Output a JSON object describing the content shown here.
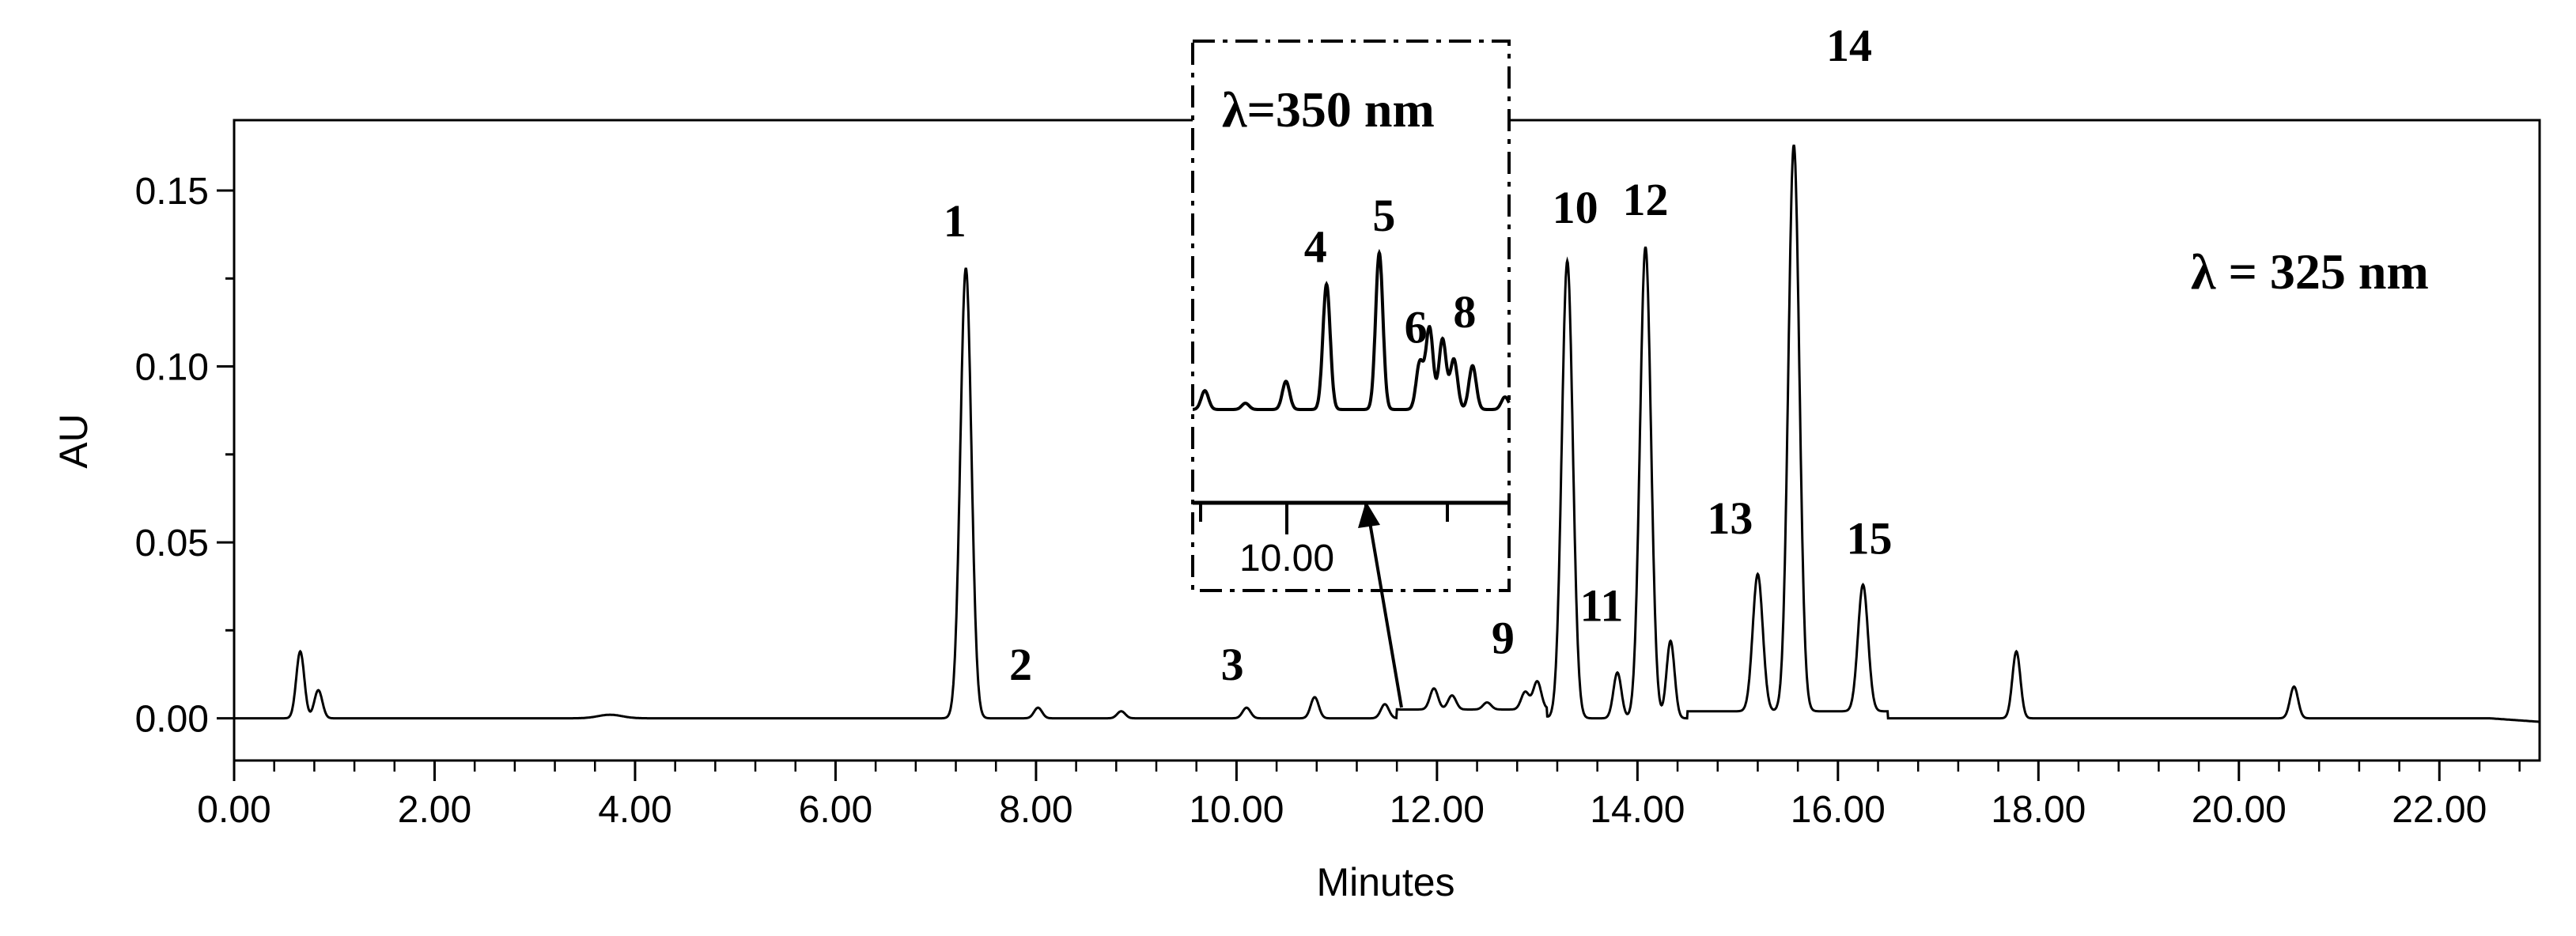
{
  "chart_data": {
    "type": "line",
    "xlabel": "Minutes",
    "ylabel": "AU",
    "xlim": [
      0,
      23
    ],
    "ylim": [
      -0.012,
      0.17
    ],
    "x_ticks": [
      "0.00",
      "2.00",
      "4.00",
      "6.00",
      "8.00",
      "10.00",
      "12.00",
      "14.00",
      "16.00",
      "18.00",
      "20.00",
      "22.00"
    ],
    "y_ticks": [
      "0.00",
      "0.05",
      "0.10",
      "0.15"
    ],
    "annotation": "λ = 325 nm",
    "series": [
      {
        "peaks": [
          {
            "x": 0.66,
            "y": 0.019
          },
          {
            "x": 0.84,
            "y": 0.008
          },
          {
            "x": 3.75,
            "y": 0.001
          },
          {
            "x": 7.3,
            "y": 0.128
          },
          {
            "x": 8.02,
            "y": 0.003
          },
          {
            "x": 8.85,
            "y": 0.002
          },
          {
            "x": 10.1,
            "y": 0.003
          },
          {
            "x": 10.78,
            "y": 0.006
          },
          {
            "x": 11.48,
            "y": 0.004
          },
          {
            "x": 11.97,
            "y": 0.006
          },
          {
            "x": 12.15,
            "y": 0.004
          },
          {
            "x": 12.5,
            "y": 0.002
          },
          {
            "x": 12.88,
            "y": 0.005
          },
          {
            "x": 13.0,
            "y": 0.008
          },
          {
            "x": 13.3,
            "y": 0.13
          },
          {
            "x": 13.8,
            "y": 0.013
          },
          {
            "x": 14.08,
            "y": 0.134
          },
          {
            "x": 14.33,
            "y": 0.022
          },
          {
            "x": 15.2,
            "y": 0.039
          },
          {
            "x": 15.56,
            "y": 0.161
          },
          {
            "x": 16.25,
            "y": 0.036
          },
          {
            "x": 17.78,
            "y": 0.019
          },
          {
            "x": 20.55,
            "y": 0.009
          }
        ]
      }
    ],
    "peak_labels": [
      {
        "text": "1",
        "x": 7.3,
        "y": 0.128
      },
      {
        "text": "2",
        "x": 8.02,
        "y": 0.003
      },
      {
        "text": "3",
        "x": 10.1,
        "y": 0.003
      },
      {
        "text": "9",
        "x": 12.88,
        "y": 0.005
      },
      {
        "text": "10",
        "x": 13.3,
        "y": 0.13
      },
      {
        "text": "11",
        "x": 13.8,
        "y": 0.013
      },
      {
        "text": "12",
        "x": 14.08,
        "y": 0.134
      },
      {
        "text": "13",
        "x": 15.2,
        "y": 0.039
      },
      {
        "text": "14",
        "x": 15.56,
        "y": 0.161
      },
      {
        "text": "15",
        "x": 16.25,
        "y": 0.036
      }
    ],
    "inset": {
      "annotation": "λ=350 nm",
      "xlim": [
        9.4,
        13.3
      ],
      "x_tick_label": "10.00",
      "peaks": [
        {
          "x": 9.55,
          "y": 0.12
        },
        {
          "x": 10.05,
          "y": 0.04
        },
        {
          "x": 10.55,
          "y": 0.18
        },
        {
          "x": 11.05,
          "y": 0.8
        },
        {
          "x": 11.7,
          "y": 1.0
        },
        {
          "x": 12.2,
          "y": 0.3
        },
        {
          "x": 12.32,
          "y": 0.52
        },
        {
          "x": 12.48,
          "y": 0.45
        },
        {
          "x": 12.62,
          "y": 0.32
        },
        {
          "x": 12.85,
          "y": 0.28
        },
        {
          "x": 13.25,
          "y": 0.08
        }
      ],
      "peak_labels": [
        {
          "text": "4",
          "x": 11.05,
          "y": 0.8
        },
        {
          "text": "5",
          "x": 11.7,
          "y": 1.0
        },
        {
          "text": "6",
          "x": 12.2,
          "y": 0.3
        },
        {
          "text": "8",
          "x": 12.48,
          "y": 0.45
        }
      ]
    }
  }
}
